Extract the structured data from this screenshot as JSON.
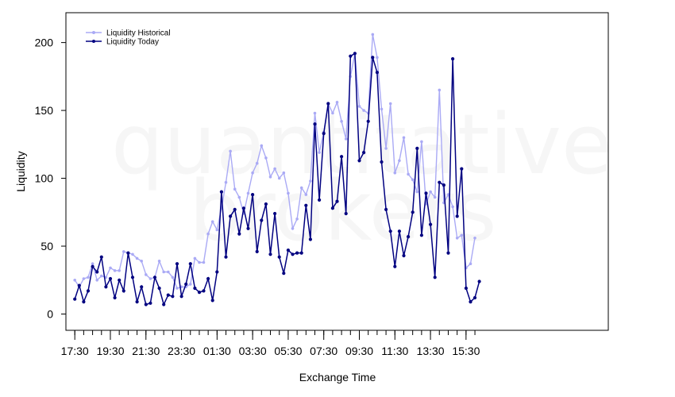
{
  "watermark": {
    "line1": "quantitative",
    "line2": "brokers"
  },
  "chart_data": {
    "type": "line",
    "xlabel": "Exchange Time",
    "ylabel": "Liquidity",
    "ylim": [
      -12,
      222
    ],
    "yticks": [
      0,
      50,
      100,
      150,
      200
    ],
    "xlim": [
      -1,
      60
    ],
    "x_tick_labels": [
      "17:30",
      "19:30",
      "21:30",
      "23:30",
      "01:30",
      "03:30",
      "05:30",
      "07:30",
      "09:30",
      "11:30",
      "13:30",
      "15:30"
    ],
    "x_tick_label_index": [
      0,
      4,
      8,
      12,
      16,
      20,
      24,
      28,
      32,
      36,
      40,
      44
    ],
    "x_minor_ticks": 46,
    "legend": {
      "position": "top-left"
    },
    "grid": false,
    "series": [
      {
        "name": "Liquidity Historical",
        "color": "#aaaaf5",
        "x_step": 0.5,
        "values": [
          25,
          20,
          26,
          27,
          37,
          25,
          28,
          27,
          34,
          32,
          32,
          46,
          45,
          44,
          41,
          39,
          29,
          26,
          27,
          39,
          31,
          31,
          27,
          19,
          20,
          20,
          22,
          41,
          38,
          38,
          59,
          68,
          62,
          78,
          97,
          120,
          92,
          86,
          74,
          89,
          104,
          111,
          124,
          115,
          101,
          107,
          100,
          104,
          89,
          63,
          70,
          93,
          88,
          98,
          148,
          119,
          134,
          155,
          148,
          156,
          142,
          129,
          175,
          192,
          153,
          150,
          148,
          206,
          189,
          151,
          122,
          155,
          104,
          113,
          130,
          103,
          99,
          90,
          127,
          81,
          90,
          86,
          165,
          82,
          88,
          79,
          56,
          58,
          34,
          37,
          56
        ]
      },
      {
        "name": "Liquidity Today",
        "color": "#000080",
        "x_step": 0.5,
        "values": [
          11,
          21,
          9,
          17,
          35,
          31,
          42,
          20,
          26,
          12,
          25,
          17,
          45,
          27,
          9,
          20,
          7,
          8,
          27,
          19,
          7,
          14,
          13,
          37,
          13,
          22,
          37,
          19,
          16,
          17,
          26,
          10,
          31,
          90,
          42,
          72,
          77,
          59,
          78,
          63,
          88,
          46,
          69,
          81,
          44,
          74,
          42,
          30,
          47,
          44,
          45,
          45,
          80,
          55,
          140,
          84,
          133,
          155,
          78,
          83,
          116,
          74,
          190,
          192,
          113,
          119,
          142,
          189,
          178,
          112,
          77,
          61,
          35,
          61,
          43,
          57,
          75,
          122,
          58,
          89,
          66,
          27,
          97,
          95,
          45,
          188,
          72,
          107,
          19,
          9,
          12,
          24
        ]
      }
    ]
  }
}
